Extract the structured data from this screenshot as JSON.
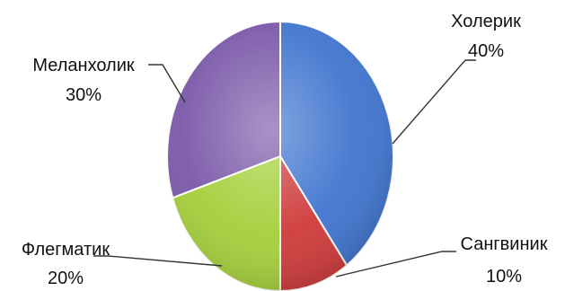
{
  "chart_data": {
    "type": "pie",
    "title": "",
    "categories": [
      "Холерик",
      "Сангвиник",
      "Флегматик",
      "Меланхолик"
    ],
    "values": [
      40,
      10,
      20,
      30
    ],
    "value_labels": [
      "40%",
      "10%",
      "20%",
      "30%"
    ],
    "colors": [
      "#3f74cf",
      "#cf3a3a",
      "#a5cf3a",
      "#7a58a8"
    ],
    "start_angle_deg": 0,
    "direction": "clockwise",
    "style": "3d-shaded",
    "legend": "none"
  }
}
